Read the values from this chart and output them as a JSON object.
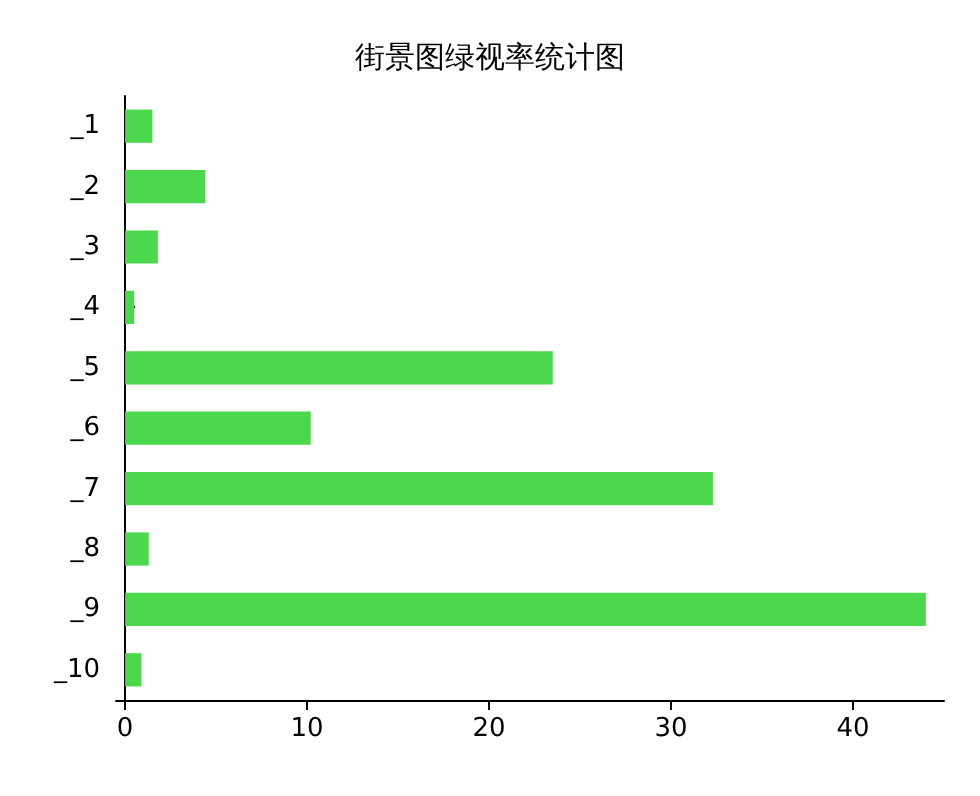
{
  "chart_data": {
    "type": "bar",
    "orientation": "horizontal",
    "title": "街景图绿视率统计图",
    "categories": [
      "_1",
      "_2",
      "_3",
      "_4",
      "_5",
      "_6",
      "_7",
      "_8",
      "_9",
      "_10"
    ],
    "values": [
      1.5,
      4.4,
      1.8,
      0.5,
      23.5,
      10.2,
      32.3,
      1.3,
      44,
      0.9
    ],
    "color": "#4cd84c",
    "xlim": [
      -0.5,
      45
    ],
    "xticks": [
      0,
      10,
      20,
      30,
      40
    ]
  }
}
